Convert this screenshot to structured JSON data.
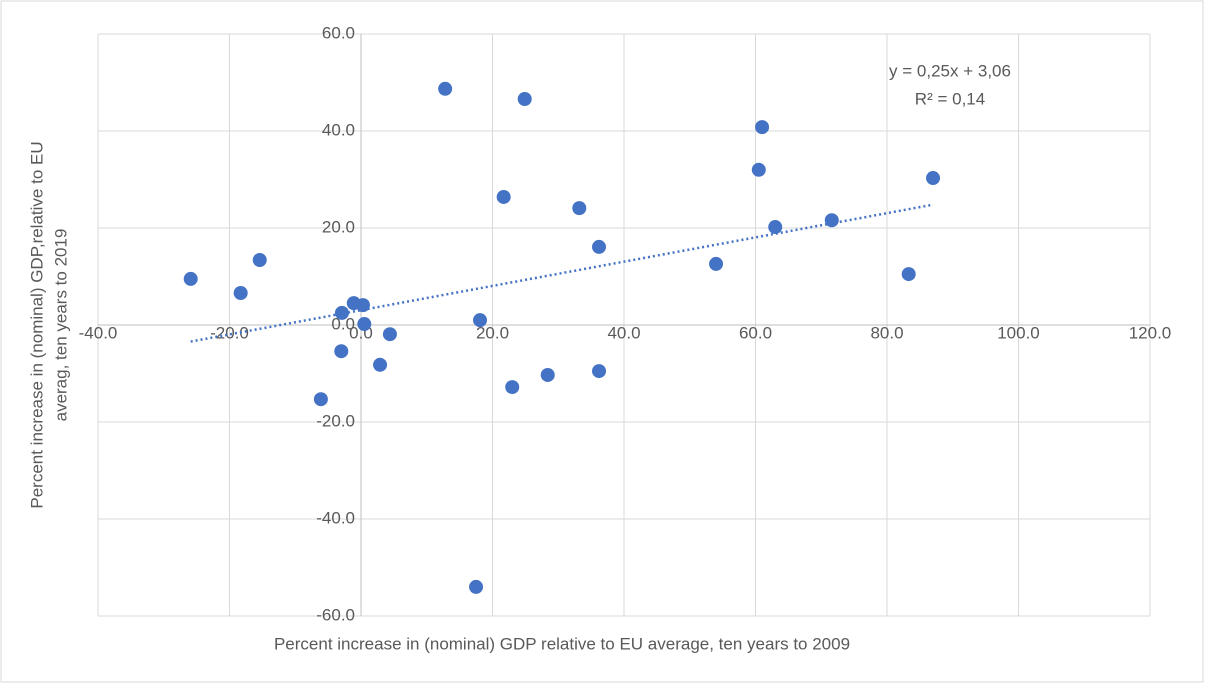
{
  "chart_data": {
    "type": "scatter",
    "x_label": "Percent increase in (nominal) GDP relative to EU average, ten years to 2009",
    "y_label": [
      "Percent increase in (nominal) GDP,relative to EU",
      "averag, ten years to 2019"
    ],
    "color": "#4472c4",
    "grid": true,
    "xlim": [
      -40,
      120
    ],
    "ylim": [
      -60,
      60
    ],
    "xticks": [
      {
        "value": -40,
        "label": "-40.0"
      },
      {
        "value": -20,
        "label": "-20.0"
      },
      {
        "value": 0,
        "label": "0.0"
      },
      {
        "value": 20,
        "label": "20.0"
      },
      {
        "value": 40,
        "label": "40.0"
      },
      {
        "value": 60,
        "label": "60.0"
      },
      {
        "value": 80,
        "label": "80.0"
      },
      {
        "value": 100,
        "label": "100.0"
      },
      {
        "value": 120,
        "label": "120.0"
      }
    ],
    "yticks": [
      {
        "value": -60,
        "label": "-60.0"
      },
      {
        "value": -40,
        "label": "-40.0"
      },
      {
        "value": -20,
        "label": "-20.0"
      },
      {
        "value": 0,
        "label": "0.0"
      },
      {
        "value": 20,
        "label": "20.0"
      },
      {
        "value": 40,
        "label": "40.0"
      },
      {
        "value": 60,
        "label": "60.0"
      }
    ],
    "x": [
      -25.9,
      -18.3,
      -15.4,
      -1.1,
      0.3,
      -2.9,
      0.5,
      4.4,
      -3.0,
      2.9,
      -6.1,
      12.8,
      24.9,
      21.7,
      33.2,
      36.2,
      18.1,
      23.0,
      28.4,
      36.2,
      17.5,
      61.0,
      60.5,
      63.0,
      71.6,
      54.0,
      83.3,
      87.0
    ],
    "values": [
      9.5,
      6.6,
      13.4,
      4.5,
      4.1,
      2.5,
      0.2,
      -1.9,
      -5.4,
      -8.2,
      -15.3,
      48.7,
      46.6,
      26.4,
      24.1,
      16.1,
      1.0,
      -12.8,
      -10.3,
      -9.5,
      -54.0,
      40.8,
      32.0,
      20.2,
      21.6,
      12.6,
      10.5,
      30.3
    ],
    "trendline": {
      "slope": 0.25,
      "intercept": 3.06,
      "equation": "y = 0,25x + 3,06",
      "r2": "R² = 0,14"
    }
  }
}
